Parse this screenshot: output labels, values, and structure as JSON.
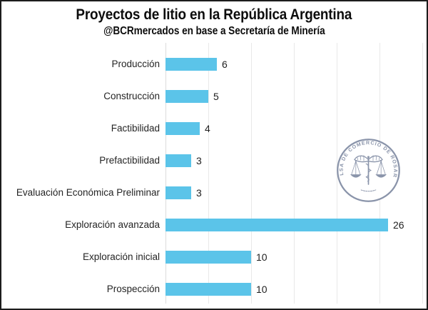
{
  "title": "Proyectos de litio en la República Argentina",
  "subtitle": "@BCRmercados en base a Secretaría de Minería",
  "colors": {
    "bar": "#5bc4e9",
    "grid": "#e9e9e9",
    "axis": "#dcdcdc",
    "label_text": "#242424",
    "title_text": "#0d0d0d",
    "logo": "#8a94aa"
  },
  "chart_data": {
    "type": "bar",
    "orientation": "horizontal",
    "title": "Proyectos de litio en la República Argentina",
    "subtitle": "@BCRmercados en base a Secretaría de Minería",
    "categories": [
      "Producción",
      "Construcción",
      "Factibilidad",
      "Prefactibilidad",
      "Evaluación Económica Preliminar",
      "Exploración avanzada",
      "Exploración inicial",
      "Prospección"
    ],
    "values": [
      6,
      5,
      4,
      3,
      3,
      26,
      10,
      10
    ],
    "xlabel": "",
    "ylabel": "",
    "xlim": [
      0,
      30
    ],
    "gridline_step": 5,
    "grid": true,
    "data_labels": true,
    "legend": false
  },
  "logo": {
    "ring_text": "BOLSA DE COMERCIO DE ROSARIO"
  }
}
